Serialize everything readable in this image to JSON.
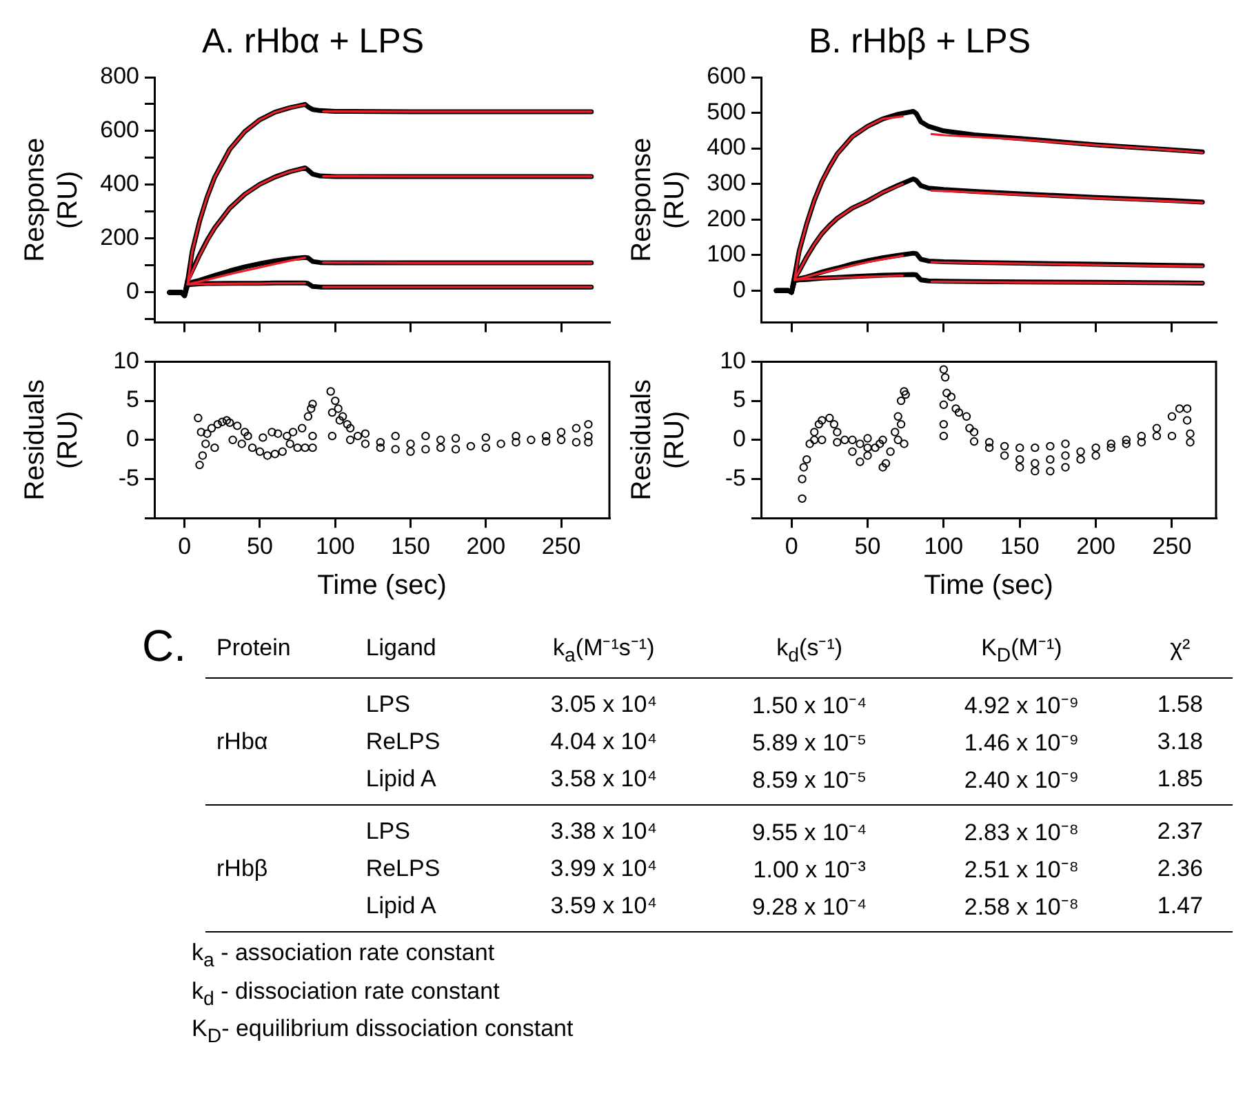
{
  "chart_data": [
    {
      "type": "line",
      "title": "A. rHbα + LPS",
      "ylabel": "Response (RU)",
      "xlim": [
        -20,
        282
      ],
      "xticks": [
        0,
        50,
        100,
        150,
        200,
        250
      ],
      "ylim": [
        -112,
        800
      ],
      "yticks": [
        {
          "value": -100,
          "label": null
        },
        0,
        {
          "value": 100,
          "label": null
        },
        200,
        {
          "value": 300,
          "label": null
        },
        400,
        {
          "value": 500,
          "label": null
        },
        600,
        {
          "value": 700,
          "label": null
        },
        800
      ],
      "tick_labels": "y",
      "grid": false,
      "marker": "none",
      "line_style": "solid",
      "series": [
        {
          "color": "#000000",
          "x": [
            -10,
            -2,
            0,
            2,
            5,
            10,
            15,
            20,
            30,
            40,
            50,
            60,
            70,
            80,
            82,
            85,
            90,
            100,
            150,
            200,
            270
          ],
          "values": [
            0,
            0,
            -12,
            40,
            150,
            265,
            355,
            428,
            532,
            598,
            642,
            670,
            687,
            699,
            690,
            680,
            676,
            673,
            672,
            672,
            672
          ]
        },
        {
          "color": "#000000",
          "x": [
            -10,
            -2,
            0,
            2,
            5,
            10,
            15,
            20,
            30,
            40,
            50,
            60,
            70,
            80,
            82,
            85,
            90,
            100,
            150,
            200,
            270
          ],
          "values": [
            0,
            0,
            -12,
            45,
            80,
            140,
            194,
            240,
            313,
            365,
            402,
            429,
            449,
            463,
            455,
            440,
            433,
            431,
            431,
            431,
            431
          ]
        },
        {
          "color": "#000000",
          "x": [
            -10,
            -2,
            0,
            2,
            5,
            10,
            15,
            20,
            30,
            40,
            50,
            60,
            70,
            80,
            82,
            85,
            90,
            100,
            150,
            200,
            270
          ],
          "values": [
            0,
            0,
            -12,
            30,
            38,
            45,
            54,
            63,
            80,
            95,
            107,
            117,
            125,
            130,
            128,
            115,
            111,
            110,
            110,
            110,
            110
          ]
        },
        {
          "color": "#000000",
          "x": [
            -10,
            -2,
            0,
            2,
            5,
            10,
            15,
            20,
            30,
            40,
            50,
            60,
            70,
            80,
            82,
            85,
            90,
            100,
            150,
            200,
            270
          ],
          "values": [
            0,
            0,
            -12,
            28,
            30,
            32,
            33,
            33,
            34,
            34,
            34,
            35,
            35,
            35,
            33,
            22,
            20,
            20,
            20,
            20,
            20
          ]
        },
        {
          "color": "#e8202a",
          "x": [
            2,
            5,
            10,
            15,
            20,
            30,
            40,
            50,
            60,
            70,
            80,
            86,
            92,
            150,
            200,
            270
          ],
          "values": [
            30,
            150,
            265,
            355,
            428,
            532,
            598,
            642,
            670,
            687,
            698,
            null,
            673,
            672,
            672,
            672
          ]
        },
        {
          "color": "#e8202a",
          "x": [
            2,
            5,
            10,
            15,
            20,
            30,
            40,
            50,
            60,
            70,
            80,
            86,
            92,
            150,
            200,
            270
          ],
          "values": [
            30,
            75,
            138,
            192,
            240,
            313,
            365,
            402,
            429,
            449,
            462,
            null,
            432,
            431,
            431,
            431
          ]
        },
        {
          "color": "#e8202a",
          "x": [
            2,
            5,
            10,
            15,
            20,
            30,
            40,
            50,
            60,
            70,
            80,
            86,
            92,
            150,
            200,
            270
          ],
          "values": [
            30,
            34,
            40,
            47,
            54,
            68,
            81,
            93,
            106,
            118,
            129,
            null,
            111,
            110,
            110,
            110
          ]
        },
        {
          "color": "#e8202a",
          "x": [
            2,
            5,
            10,
            15,
            20,
            30,
            40,
            50,
            60,
            70,
            80,
            86,
            92,
            150,
            200,
            270
          ],
          "values": [
            30,
            30,
            31,
            31,
            32,
            32,
            33,
            33,
            34,
            34,
            35,
            null,
            20,
            20,
            20,
            20
          ]
        }
      ]
    },
    {
      "type": "line",
      "title": "B. rHbβ + LPS",
      "ylabel": "Response (RU)",
      "xlim": [
        -20,
        279
      ],
      "xticks": [
        0,
        50,
        100,
        150,
        200,
        250
      ],
      "ylim": [
        -90,
        600
      ],
      "yticks": [
        0,
        100,
        200,
        300,
        400,
        500,
        600
      ],
      "tick_labels": "y",
      "grid": false,
      "marker": "none",
      "line_style": "solid",
      "series": [
        {
          "color": "#000000",
          "x": [
            -10,
            -2,
            0,
            2,
            5,
            10,
            15,
            20,
            25,
            30,
            40,
            50,
            60,
            70,
            80,
            82,
            85,
            90,
            100,
            120,
            150,
            200,
            250,
            270
          ],
          "values": [
            0,
            0,
            -5,
            40,
            110,
            188,
            254,
            307,
            348,
            384,
            433,
            462,
            483,
            496,
            504,
            498,
            475,
            462,
            449,
            438,
            428,
            410,
            396,
            390
          ]
        },
        {
          "color": "#000000",
          "x": [
            -10,
            -2,
            0,
            2,
            5,
            10,
            15,
            20,
            25,
            30,
            40,
            50,
            60,
            70,
            80,
            82,
            85,
            90,
            100,
            120,
            150,
            200,
            250,
            270
          ],
          "values": [
            0,
            0,
            -5,
            35,
            55,
            95,
            130,
            160,
            183,
            203,
            232,
            252,
            276,
            296,
            314,
            310,
            295,
            288,
            284,
            279,
            272,
            262,
            253,
            249
          ]
        },
        {
          "color": "#000000",
          "x": [
            -10,
            -2,
            0,
            2,
            5,
            10,
            15,
            20,
            25,
            30,
            40,
            50,
            60,
            70,
            80,
            82,
            85,
            90,
            100,
            120,
            150,
            200,
            250,
            270
          ],
          "values": [
            0,
            0,
            -5,
            30,
            33,
            38,
            45,
            52,
            58,
            63,
            75,
            84,
            92,
            99,
            105,
            104,
            88,
            83,
            81,
            79,
            77,
            74,
            71,
            70
          ]
        },
        {
          "color": "#000000",
          "x": [
            -10,
            -2,
            0,
            2,
            5,
            10,
            15,
            20,
            25,
            30,
            40,
            50,
            60,
            70,
            80,
            82,
            85,
            90,
            100,
            120,
            150,
            200,
            250,
            270
          ],
          "values": [
            0,
            0,
            -5,
            28,
            30,
            31,
            33,
            35,
            36,
            37,
            39,
            41,
            43,
            44,
            45,
            44,
            30,
            27,
            26,
            25,
            24,
            23,
            22,
            21
          ]
        },
        {
          "color": "#e8202a",
          "x": [
            2,
            5,
            10,
            15,
            20,
            25,
            30,
            40,
            50,
            60,
            73,
            85,
            92,
            100,
            150,
            200,
            250,
            270
          ],
          "values": [
            30,
            110,
            188,
            254,
            307,
            348,
            384,
            433,
            462,
            483,
            490,
            null,
            440,
            437,
            425,
            409,
            395,
            388
          ]
        },
        {
          "color": "#e8202a",
          "x": [
            2,
            5,
            10,
            15,
            20,
            25,
            30,
            40,
            50,
            60,
            73,
            85,
            92,
            100,
            150,
            200,
            250,
            270
          ],
          "values": [
            30,
            55,
            95,
            130,
            160,
            183,
            203,
            232,
            252,
            276,
            300,
            null,
            281,
            280,
            270,
            260,
            251,
            247
          ]
        },
        {
          "color": "#e8202a",
          "x": [
            2,
            5,
            10,
            15,
            20,
            25,
            30,
            40,
            50,
            60,
            73,
            85,
            92,
            100,
            150,
            200,
            250,
            270
          ],
          "values": [
            30,
            33,
            38,
            44,
            50,
            55,
            60,
            70,
            80,
            88,
            98,
            null,
            80,
            79,
            76,
            72,
            69,
            68
          ]
        },
        {
          "color": "#e8202a",
          "x": [
            2,
            5,
            10,
            15,
            20,
            25,
            30,
            40,
            50,
            60,
            73,
            85,
            92,
            100,
            150,
            200,
            250,
            270
          ],
          "values": [
            30,
            31,
            32,
            33,
            34,
            35,
            36,
            37,
            39,
            40,
            42,
            null,
            25,
            25,
            23,
            22,
            21,
            21
          ]
        }
      ]
    },
    {
      "type": "scatter",
      "xlabel": "Time (sec)",
      "ylabel": "Residuals (RU)",
      "xlim": [
        -20,
        282
      ],
      "xticks": [
        0,
        50,
        100,
        150,
        200,
        250
      ],
      "ylim": [
        -10,
        10
      ],
      "yticks": [
        {
          "value": -10,
          "label": null
        },
        -5,
        0,
        5,
        10
      ],
      "grid": false,
      "marker": "circle",
      "series": [
        {
          "color": "#000000",
          "x": [
            9,
            10,
            11,
            12,
            14,
            15,
            18,
            20,
            22,
            25,
            28,
            30,
            32,
            35,
            38,
            40,
            42,
            45,
            50,
            52,
            55,
            58,
            60,
            62,
            65,
            68,
            70,
            72,
            75,
            78,
            80,
            82,
            84,
            85,
            85,
            85,
            97,
            98,
            98,
            100,
            102,
            103,
            105,
            108,
            110,
            110,
            115,
            120,
            120,
            130,
            130,
            140,
            140,
            150,
            150,
            160,
            160,
            170,
            170,
            180,
            180,
            190,
            200,
            200,
            210,
            220,
            220,
            230,
            240,
            240,
            250,
            250,
            260,
            260,
            268,
            268,
            268
          ],
          "values": [
            2.8,
            -3.2,
            1,
            -2,
            -0.5,
            0.8,
            1.5,
            -1,
            2,
            2.3,
            2.5,
            2.2,
            0,
            1.8,
            -0.5,
            1,
            0.5,
            -1,
            -1.5,
            0.3,
            -2,
            1,
            -1.8,
            0.8,
            -1.5,
            0.5,
            -0.5,
            1,
            -1,
            1.5,
            -1,
            3,
            4,
            4.6,
            0.5,
            -1,
            6.2,
            3.5,
            0.5,
            5,
            4,
            2.5,
            3,
            2,
            1.5,
            0,
            0.5,
            -0.5,
            0.8,
            -0.3,
            -1,
            0.5,
            -1.2,
            -0.5,
            -1.5,
            0.5,
            -1.2,
            -1,
            0,
            -1.2,
            0.2,
            -0.8,
            -1,
            0.3,
            -0.5,
            -0.3,
            0.5,
            0,
            0.5,
            -0.2,
            1,
            0,
            1.5,
            -0.3,
            2,
            0.5,
            -0.3
          ]
        }
      ]
    },
    {
      "type": "scatter",
      "xlabel": "Time (sec)",
      "ylabel": "Residuals (RU)",
      "xlim": [
        -20,
        279
      ],
      "xticks": [
        0,
        50,
        100,
        150,
        200,
        250
      ],
      "ylim": [
        -10,
        10
      ],
      "yticks": [
        {
          "value": -10,
          "label": null
        },
        -5,
        0,
        5,
        10
      ],
      "grid": false,
      "marker": "circle",
      "series": [
        {
          "color": "#000000",
          "x": [
            7,
            7,
            8,
            10,
            12,
            15,
            18,
            20,
            25,
            28,
            30,
            35,
            40,
            45,
            50,
            55,
            58,
            60,
            62,
            65,
            68,
            70,
            72,
            74,
            75,
            72,
            15,
            20,
            30,
            40,
            50,
            60,
            70,
            74,
            45,
            50,
            100,
            101,
            102,
            100,
            100,
            100,
            105,
            108,
            110,
            115,
            117,
            120,
            120,
            130,
            130,
            140,
            140,
            150,
            150,
            150,
            160,
            160,
            160,
            170,
            170,
            170,
            180,
            180,
            180,
            190,
            190,
            200,
            200,
            210,
            210,
            220,
            220,
            230,
            230,
            240,
            240,
            250,
            250,
            255,
            260,
            260,
            262,
            262
          ],
          "values": [
            -7.5,
            -5,
            -3.5,
            -2.5,
            -0.5,
            1,
            2,
            2.5,
            2.8,
            2,
            1,
            0,
            -1.5,
            -2.8,
            -2,
            -1,
            -0.5,
            -3.5,
            -3,
            -1.5,
            1,
            3,
            5,
            6.2,
            5.8,
            2,
            0,
            0,
            -0.3,
            0,
            0.2,
            0,
            0,
            -0.5,
            -0.5,
            -1,
            9,
            8,
            6,
            4.5,
            2,
            0.5,
            5.5,
            4,
            3.5,
            3,
            1.5,
            1,
            -0.2,
            -1,
            -0.3,
            -2,
            -0.8,
            -3.5,
            -2.5,
            -1,
            -4,
            -3,
            -1,
            -4,
            -2.5,
            -0.8,
            -3.5,
            -2,
            -0.5,
            -2.5,
            -1.5,
            -2,
            -1,
            -1,
            -0.5,
            -0.5,
            0,
            0.5,
            -0.3,
            1.5,
            0.5,
            3,
            0.5,
            4,
            4,
            2.5,
            -0.3,
            0.8
          ]
        }
      ]
    },
    {
      "type": "other",
      "title": "C.",
      "categories": [
        "Protein",
        "Ligand",
        "k$_{a}$(M⁻¹s⁻¹)",
        "k$_{d}$(s⁻¹)",
        "K$_{D}$(M⁻¹)",
        "χ²"
      ],
      "y_categories": [
        "rHbα",
        "rHbβ"
      ],
      "cell_labels": [
        [
          [
            "LPS",
            "3.05 x 10⁴",
            "1.50 x 10⁻⁴",
            "4.92 x 10⁻⁹",
            "1.58"
          ],
          [
            "ReLPS",
            "4.04 x 10⁴",
            "5.89 x 10⁻⁵",
            "1.46 x 10⁻⁹",
            "3.18"
          ],
          [
            "Lipid A",
            "3.58 x 10⁴",
            "8.59 x 10⁻⁵",
            "2.40 x 10⁻⁹",
            "1.85"
          ]
        ],
        [
          [
            "LPS",
            "3.38 x 10⁴",
            "9.55 x 10⁻⁴",
            "2.83 x 10⁻⁸",
            "2.37"
          ],
          [
            "ReLPS",
            "3.99 x 10⁴",
            "1.00 x 10⁻³",
            "2.51 x 10⁻⁸",
            "2.36"
          ],
          [
            "Lipid A",
            "3.59 x 10⁴",
            "9.28 x 10⁻⁴",
            "2.58 x 10⁻⁸",
            "1.47"
          ]
        ]
      ],
      "annotations": [
        "k$_{a}$ - association rate constant",
        "k$_{d}$ - dissociation rate constant",
        "K$_{D}$- equilibrium dissociation constant"
      ]
    }
  ]
}
